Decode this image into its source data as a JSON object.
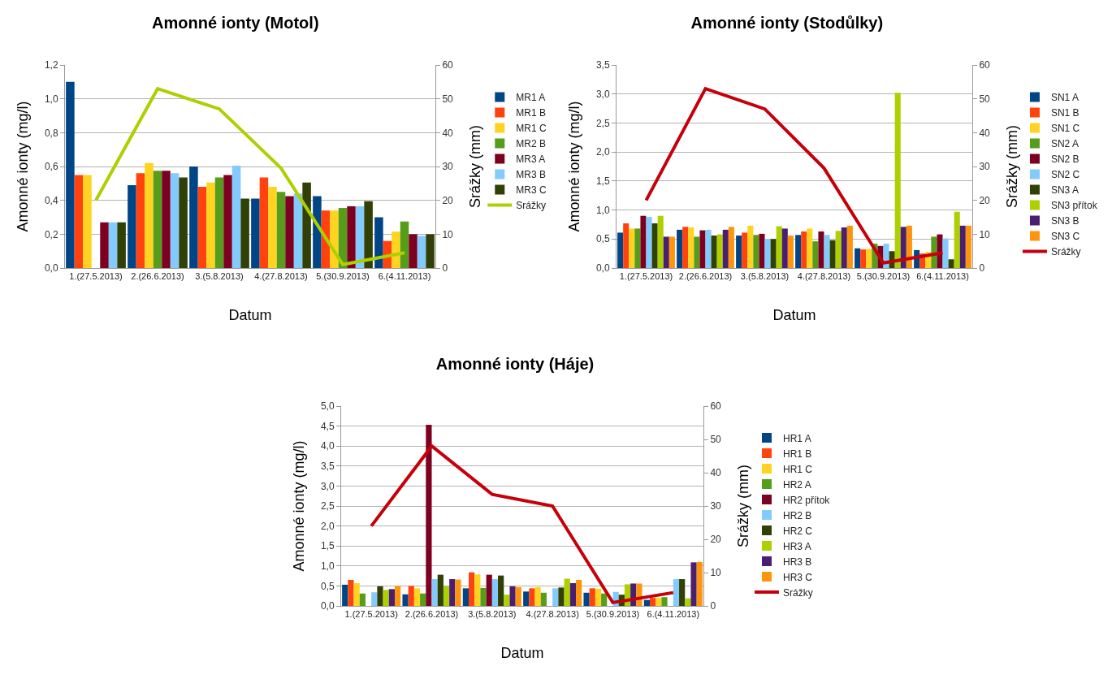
{
  "chart_data": [
    {
      "type": "bar",
      "title": "Amonné ionty (Motol)",
      "xlabel": "Datum",
      "ylabel": "Amonné ionty (mg/l)",
      "y2label": "Srážky (mm)",
      "categories": [
        "1.(27.5.2013)",
        "2.(26.6.2013)",
        "3.(5.8.2013)",
        "4.(27.8.2013)",
        "5.(30.9.2013)",
        "6.(4.11.2013)"
      ],
      "series": [
        {
          "name": "MR1 A",
          "color": "#004586",
          "values": [
            1.1,
            0.49,
            0.6,
            0.41,
            0.425,
            0.3
          ]
        },
        {
          "name": "MR1 B",
          "color": "#ff420e",
          "values": [
            0.55,
            0.56,
            0.48,
            0.535,
            0.34,
            0.16
          ]
        },
        {
          "name": "MR1 C",
          "color": "#ffd320",
          "values": [
            0.55,
            0.62,
            0.505,
            0.48,
            0.34,
            0.215
          ]
        },
        {
          "name": "MR2 B",
          "color": "#579d1c",
          "values": [
            null,
            0.575,
            0.535,
            0.45,
            0.355,
            0.275
          ]
        },
        {
          "name": "MR3 A",
          "color": "#7e0021",
          "values": [
            0.27,
            0.575,
            0.55,
            0.425,
            0.365,
            0.2
          ]
        },
        {
          "name": "MR3 B",
          "color": "#83caff",
          "values": [
            0.27,
            0.56,
            0.605,
            0.44,
            0.365,
            0.19
          ]
        },
        {
          "name": "MR3 C",
          "color": "#314004",
          "values": [
            0.27,
            0.535,
            0.41,
            0.505,
            0.395,
            0.2
          ]
        },
        {
          "name": "Srážky",
          "color": "#aecf00",
          "type": "line",
          "axis": "y2",
          "values": [
            20,
            53,
            47,
            29.5,
            1,
            4.5
          ]
        }
      ],
      "ylim": [
        0,
        1.2
      ],
      "yticks": [
        {
          "value": 0,
          "label": "0,0"
        },
        {
          "value": 0.2,
          "label": "0,2"
        },
        {
          "value": 0.4,
          "label": "0,4"
        },
        {
          "value": 0.6,
          "label": "0,6"
        },
        {
          "value": 0.8,
          "label": "0,8"
        },
        {
          "value": 1,
          "label": "1,0"
        },
        {
          "value": 1.2,
          "label": "1,2"
        }
      ],
      "y2lim": [
        0,
        60
      ],
      "y2ticks": [
        0,
        10,
        20,
        30,
        40,
        50,
        60
      ],
      "grid": "y",
      "legend": "right"
    },
    {
      "type": "bar",
      "title": "Amonné ionty (Stodůlky)",
      "xlabel": "Datum",
      "ylabel": "Amonné ionty (mg/l)",
      "y2label": "Srážky (mm)",
      "categories": [
        "1.(27.5.2013)",
        "2.(26.6.2013)",
        "3.(5.8.2013)",
        "4.(27.8.2013)",
        "5.(30.9.2013)",
        "6.(4.11.2013)"
      ],
      "series": [
        {
          "name": "SN1 A",
          "color": "#004586",
          "values": [
            0.61,
            0.66,
            0.56,
            0.57,
            0.34,
            0.31
          ]
        },
        {
          "name": "SN1 B",
          "color": "#ff420e",
          "values": [
            0.77,
            0.71,
            0.61,
            0.63,
            0.32,
            0.25
          ]
        },
        {
          "name": "SN1 C",
          "color": "#ffd320",
          "values": [
            0.68,
            0.7,
            0.73,
            0.68,
            0.33,
            0.28
          ]
        },
        {
          "name": "SN2 A",
          "color": "#579d1c",
          "values": [
            0.68,
            0.54,
            0.57,
            0.46,
            0.42,
            0.54
          ]
        },
        {
          "name": "SN2 B",
          "color": "#7e0021",
          "values": [
            0.9,
            0.65,
            0.59,
            0.63,
            0.38,
            0.58
          ]
        },
        {
          "name": "SN2 C",
          "color": "#83caff",
          "values": [
            0.88,
            0.66,
            0.5,
            0.57,
            0.42,
            0.51
          ]
        },
        {
          "name": "SN3 A",
          "color": "#314004",
          "values": [
            0.77,
            0.56,
            0.5,
            0.48,
            0.29,
            0.15
          ]
        },
        {
          "name": "SN3 přítok",
          "color": "#aecf00",
          "values": [
            0.9,
            0.58,
            0.72,
            0.64,
            3.02,
            0.97
          ]
        },
        {
          "name": "SN3 B",
          "color": "#4b1f6f",
          "values": [
            0.54,
            0.66,
            0.68,
            0.7,
            0.71,
            0.73
          ]
        },
        {
          "name": "SN3 C",
          "color": "#ff950e",
          "values": [
            0.54,
            0.71,
            0.56,
            0.73,
            0.73,
            0.73
          ]
        },
        {
          "name": "Srážky",
          "color": "#c5000b",
          "type": "line",
          "axis": "y2",
          "values": [
            20,
            53,
            47,
            29.5,
            1.5,
            4.5
          ]
        }
      ],
      "ylim": [
        0,
        3.5
      ],
      "yticks": [
        {
          "value": 0,
          "label": "0,0"
        },
        {
          "value": 0.5,
          "label": "0,5"
        },
        {
          "value": 1,
          "label": "1,0"
        },
        {
          "value": 1.5,
          "label": "1,5"
        },
        {
          "value": 2,
          "label": "2,0"
        },
        {
          "value": 2.5,
          "label": "2,5"
        },
        {
          "value": 3,
          "label": "3,0"
        },
        {
          "value": 3.5,
          "label": "3,5"
        }
      ],
      "y2lim": [
        0,
        60
      ],
      "y2ticks": [
        0,
        10,
        20,
        30,
        40,
        50,
        60
      ],
      "grid": "y",
      "legend": "right"
    },
    {
      "type": "bar",
      "title": "Amonné ionty (Háje)",
      "xlabel": "Datum",
      "ylabel": "Amonné ionty (mg/l)",
      "y2label": "Srážky (mm)",
      "categories": [
        "1.(27.5.2013)",
        "2.(26.6.2013)",
        "3.(5.8.2013)",
        "4.(27.8.2013)",
        "5.(30.9.2013)",
        "6.(4.11.2013)"
      ],
      "series": [
        {
          "name": "HR1 A",
          "color": "#004586",
          "values": [
            0.53,
            0.29,
            0.44,
            0.36,
            0.33,
            0.15
          ]
        },
        {
          "name": "HR1 B",
          "color": "#ff420e",
          "values": [
            0.65,
            0.5,
            0.84,
            0.44,
            0.44,
            0.2
          ]
        },
        {
          "name": "HR1 C",
          "color": "#ffd320",
          "values": [
            0.57,
            0.44,
            0.79,
            0.47,
            0.43,
            0.2
          ]
        },
        {
          "name": "HR2 A",
          "color": "#579d1c",
          "values": [
            0.31,
            0.31,
            0.45,
            0.33,
            0.31,
            0.22
          ]
        },
        {
          "name": "HR2 přítok",
          "color": "#7e0021",
          "values": [
            null,
            4.53,
            0.78,
            null,
            null,
            null
          ]
        },
        {
          "name": "HR2 B",
          "color": "#83caff",
          "values": [
            0.34,
            0.67,
            0.67,
            0.44,
            0.35,
            0.67
          ]
        },
        {
          "name": "HR2 C",
          "color": "#314004",
          "values": [
            0.49,
            0.78,
            0.76,
            0.46,
            0.28,
            0.67
          ]
        },
        {
          "name": "HR3 A",
          "color": "#aecf00",
          "values": [
            0.4,
            0.5,
            0.28,
            0.68,
            0.54,
            0.19
          ]
        },
        {
          "name": "HR3 B",
          "color": "#4b1f6f",
          "values": [
            0.42,
            0.67,
            0.49,
            0.57,
            0.56,
            1.09
          ]
        },
        {
          "name": "HR3 C",
          "color": "#ff950e",
          "values": [
            0.5,
            0.66,
            0.47,
            0.65,
            0.56,
            1.1
          ]
        },
        {
          "name": "Srážky",
          "color": "#c5000b",
          "type": "line",
          "axis": "y2",
          "values": [
            24,
            48,
            33.5,
            30,
            1,
            4
          ]
        }
      ],
      "ylim": [
        0,
        5
      ],
      "yticks": [
        {
          "value": 0,
          "label": "0,0"
        },
        {
          "value": 0.5,
          "label": "0,5"
        },
        {
          "value": 1,
          "label": "1,0"
        },
        {
          "value": 1.5,
          "label": "1,5"
        },
        {
          "value": 2,
          "label": "2,0"
        },
        {
          "value": 2.5,
          "label": "2,5"
        },
        {
          "value": 3,
          "label": "3,0"
        },
        {
          "value": 3.5,
          "label": "3,5"
        },
        {
          "value": 4,
          "label": "4,0"
        },
        {
          "value": 4.5,
          "label": "4,5"
        },
        {
          "value": 5,
          "label": "5,0"
        }
      ],
      "y2lim": [
        0,
        60
      ],
      "y2ticks": [
        0,
        10,
        20,
        30,
        40,
        50,
        60
      ],
      "grid": "y",
      "legend": "right"
    }
  ]
}
